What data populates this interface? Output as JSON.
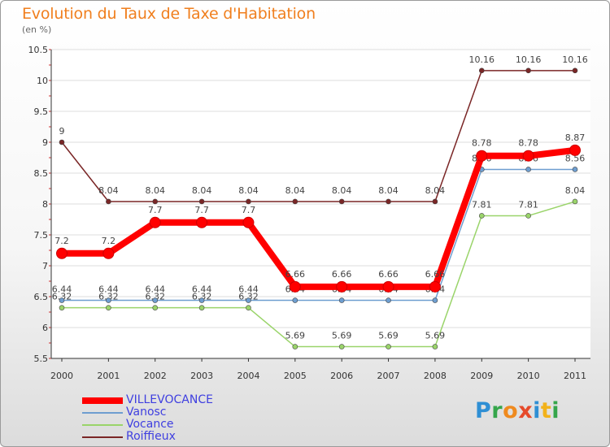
{
  "header": {
    "title": "Evolution du Taux de Taxe d'Habitation",
    "unit": "(en %)"
  },
  "brand": {
    "letters": [
      {
        "ch": "P",
        "color": "#2f8fd4"
      },
      {
        "ch": "r",
        "color": "#35a64b"
      },
      {
        "ch": "o",
        "color": "#ef8a1f"
      },
      {
        "ch": "x",
        "color": "#e64a2b"
      },
      {
        "ch": "i",
        "color": "#2f8fd4"
      },
      {
        "ch": "t",
        "color": "#f2b21a"
      },
      {
        "ch": "i",
        "color": "#35a64b"
      }
    ]
  },
  "chart_data": {
    "type": "line",
    "title": "Evolution du Taux de Taxe d'Habitation",
    "ylabel": "(en %)",
    "xlabel": "",
    "categories": [
      "2000",
      "2001",
      "2002",
      "2003",
      "2004",
      "2005",
      "2006",
      "2007",
      "2008",
      "2009",
      "2010",
      "2011"
    ],
    "ylim": [
      5.5,
      10.5
    ],
    "yticks": [
      5.5,
      6,
      6.5,
      7,
      7.5,
      8,
      8.5,
      9,
      9.5,
      10,
      10.5
    ],
    "series": [
      {
        "name": "Roiffieux",
        "color": "#7a2626",
        "values": [
          9,
          8.04,
          8.04,
          8.04,
          8.04,
          8.04,
          8.04,
          8.04,
          8.04,
          10.16,
          10.16,
          10.16
        ],
        "labels": [
          "9",
          "8.04",
          "8.04",
          "8.04",
          "8.04",
          "8.04",
          "8.04",
          "8.04",
          "8.04",
          "10.16",
          "10.16",
          "10.16"
        ]
      },
      {
        "name": "Vocance",
        "color": "#9ad46a",
        "values": [
          6.32,
          6.32,
          6.32,
          6.32,
          6.32,
          5.69,
          5.69,
          5.69,
          5.69,
          7.81,
          7.81,
          8.04
        ],
        "labels": [
          "6.32",
          "6.32",
          "6.32",
          "6.32",
          "6.32",
          "5.69",
          "5.69",
          "5.69",
          "5.69",
          "7.81",
          "7.81",
          "8.04"
        ]
      },
      {
        "name": "Vanosc",
        "color": "#6e9ed0",
        "values": [
          6.44,
          6.44,
          6.44,
          6.44,
          6.44,
          6.44,
          6.44,
          6.44,
          6.44,
          8.56,
          8.56,
          8.56
        ],
        "labels": [
          "6.44",
          "6.44",
          "6.44",
          "6.44",
          "6.44",
          "6.44",
          "6.44",
          "6.44",
          "6.44",
          "8.56",
          "8.56",
          "8.56"
        ]
      },
      {
        "name": "VILLEVOCANCE",
        "color": "#ff0000",
        "values": [
          7.2,
          7.2,
          7.7,
          7.7,
          7.7,
          6.66,
          6.66,
          6.66,
          6.66,
          8.78,
          8.78,
          8.87
        ],
        "labels": [
          "7.2",
          "7.2",
          "7.7",
          "7.7",
          "7.7",
          "6.66",
          "6.66",
          "6.66",
          "6.66",
          "8.78",
          "8.78",
          "8.87"
        ]
      }
    ],
    "legend": [
      {
        "name": "VILLEVOCANCE",
        "color": "#ff0000"
      },
      {
        "name": "Vanosc",
        "color": "#6e9ed0"
      },
      {
        "name": "Vocance",
        "color": "#9ad46a"
      },
      {
        "name": "Roiffieux",
        "color": "#7a2626"
      }
    ]
  }
}
